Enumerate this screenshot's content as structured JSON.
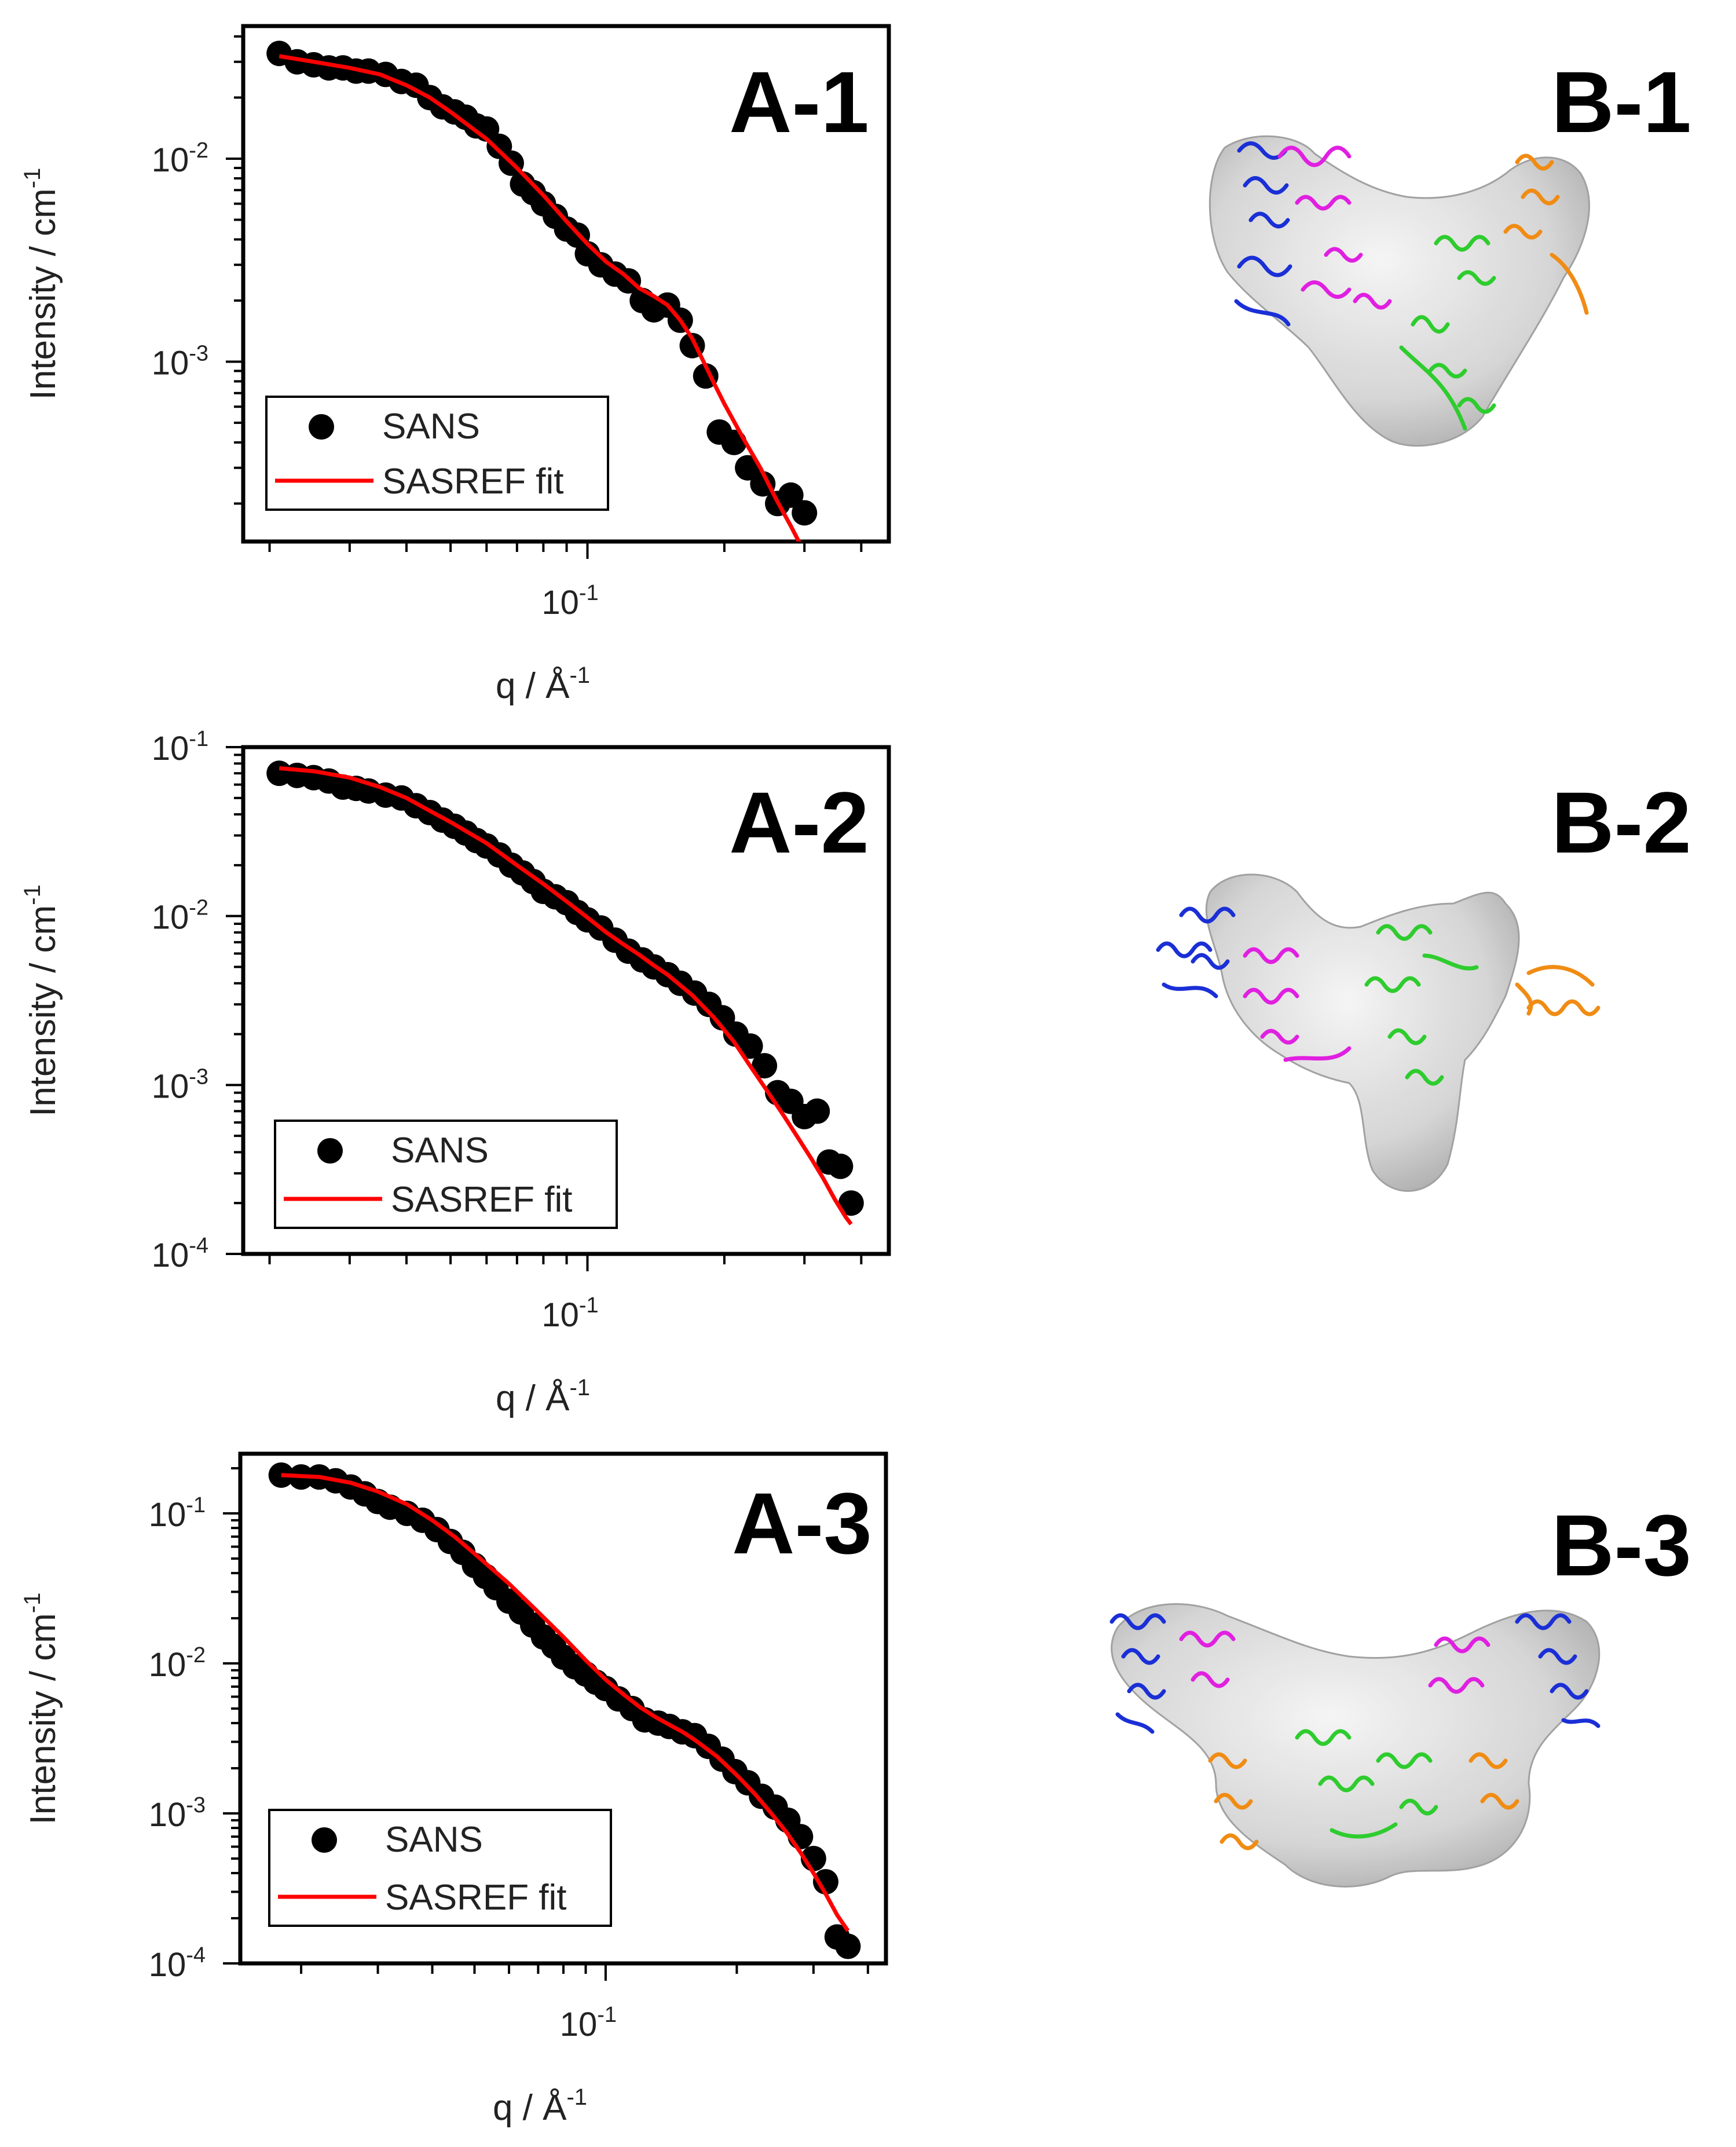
{
  "figure": {
    "background": "#ffffff",
    "colors": {
      "marker": "#000000",
      "fit": "#ff0000",
      "envelope": "#c8c8c8",
      "helix_blue": "#1a2fd6",
      "helix_magenta": "#e020e0",
      "helix_green": "#2ecc2e",
      "helix_orange": "#f08c14"
    }
  },
  "chart_data": [
    {
      "type": "scatter",
      "panel": "A-1",
      "title": "",
      "xlabel": "q / Å",
      "xlabel_sup": "-1",
      "ylabel": "Intensity / cm",
      "ylabel_sup": "-1",
      "xscale": "log",
      "yscale": "log",
      "xlim": [
        0.0175,
        0.46
      ],
      "ylim": [
        0.00013,
        0.045
      ],
      "x_tick_label_base": "10",
      "x_tick_labels": [
        {
          "value": 0.1,
          "exponent": "-1"
        }
      ],
      "y_tick_label_base": "10",
      "y_tick_labels": [
        {
          "value": 0.01,
          "exponent": "-2"
        },
        {
          "value": 0.001,
          "exponent": "-3"
        }
      ],
      "legend": {
        "position": "bottom-left",
        "entries": [
          "SANS",
          "SASREF fit"
        ]
      },
      "series": [
        {
          "name": "SANS",
          "style": "markers",
          "x": [
            0.021,
            0.023,
            0.025,
            0.027,
            0.029,
            0.031,
            0.033,
            0.036,
            0.039,
            0.042,
            0.045,
            0.048,
            0.051,
            0.054,
            0.057,
            0.06,
            0.064,
            0.068,
            0.072,
            0.076,
            0.08,
            0.085,
            0.09,
            0.095,
            0.1,
            0.107,
            0.115,
            0.123,
            0.132,
            0.14,
            0.15,
            0.16,
            0.17,
            0.182,
            0.195,
            0.21,
            0.225,
            0.243,
            0.262,
            0.28,
            0.3
          ],
          "y": [
            0.033,
            0.03,
            0.029,
            0.028,
            0.028,
            0.027,
            0.027,
            0.026,
            0.024,
            0.023,
            0.02,
            0.018,
            0.017,
            0.016,
            0.0145,
            0.014,
            0.0115,
            0.0095,
            0.0075,
            0.0068,
            0.006,
            0.0052,
            0.0045,
            0.0042,
            0.0034,
            0.003,
            0.0027,
            0.0025,
            0.002,
            0.0018,
            0.0019,
            0.0016,
            0.0012,
            0.00085,
            0.00045,
            0.0004,
            0.0003,
            0.00025,
            0.0002,
            0.00022,
            0.00018
          ]
        },
        {
          "name": "SASREF fit",
          "style": "line",
          "x": [
            0.021,
            0.025,
            0.03,
            0.035,
            0.04,
            0.045,
            0.05,
            0.06,
            0.07,
            0.08,
            0.09,
            0.1,
            0.11,
            0.12,
            0.13,
            0.14,
            0.15,
            0.16,
            0.17,
            0.18,
            0.19,
            0.2,
            0.22,
            0.24,
            0.26,
            0.28,
            0.3
          ],
          "y": [
            0.032,
            0.03,
            0.028,
            0.026,
            0.023,
            0.02,
            0.017,
            0.0125,
            0.009,
            0.0066,
            0.0049,
            0.0038,
            0.0031,
            0.0027,
            0.0023,
            0.0021,
            0.0019,
            0.0016,
            0.0013,
            0.001,
            0.00078,
            0.00062,
            0.00042,
            0.0003,
            0.00021,
            0.000155,
            0.000115
          ]
        }
      ]
    },
    {
      "type": "scatter",
      "panel": "A-2",
      "title": "",
      "xlabel": "q / Å",
      "xlabel_sup": "-1",
      "ylabel": "Intensity / cm",
      "ylabel_sup": "-1",
      "xscale": "log",
      "yscale": "log",
      "xlim": [
        0.0175,
        0.46
      ],
      "ylim": [
        0.0001,
        0.1
      ],
      "x_tick_label_base": "10",
      "x_tick_labels": [
        {
          "value": 0.1,
          "exponent": "-1"
        }
      ],
      "y_tick_label_base": "10",
      "y_tick_labels": [
        {
          "value": 0.1,
          "exponent": "-1"
        },
        {
          "value": 0.01,
          "exponent": "-2"
        },
        {
          "value": 0.001,
          "exponent": "-3"
        },
        {
          "value": 0.0001,
          "exponent": "-4"
        }
      ],
      "legend": {
        "position": "bottom-left",
        "entries": [
          "SANS",
          "SASREF fit"
        ]
      },
      "series": [
        {
          "name": "SANS",
          "style": "markers",
          "x": [
            0.021,
            0.023,
            0.025,
            0.027,
            0.029,
            0.031,
            0.033,
            0.036,
            0.039,
            0.042,
            0.045,
            0.048,
            0.051,
            0.054,
            0.057,
            0.06,
            0.064,
            0.068,
            0.072,
            0.076,
            0.08,
            0.085,
            0.09,
            0.095,
            0.1,
            0.107,
            0.115,
            0.123,
            0.132,
            0.14,
            0.15,
            0.16,
            0.172,
            0.185,
            0.198,
            0.212,
            0.228,
            0.245,
            0.262,
            0.28,
            0.3,
            0.32,
            0.34,
            0.36,
            0.38
          ],
          "y": [
            0.07,
            0.068,
            0.066,
            0.063,
            0.058,
            0.057,
            0.055,
            0.052,
            0.05,
            0.045,
            0.041,
            0.037,
            0.034,
            0.031,
            0.028,
            0.026,
            0.023,
            0.02,
            0.018,
            0.016,
            0.014,
            0.013,
            0.012,
            0.0105,
            0.0095,
            0.0085,
            0.0072,
            0.0062,
            0.0055,
            0.005,
            0.0045,
            0.004,
            0.0035,
            0.003,
            0.0025,
            0.002,
            0.0017,
            0.0013,
            0.0009,
            0.0008,
            0.00065,
            0.0007,
            0.00035,
            0.00033,
            0.0002
          ]
        },
        {
          "name": "SASREF fit",
          "style": "line",
          "x": [
            0.021,
            0.025,
            0.03,
            0.035,
            0.04,
            0.045,
            0.05,
            0.06,
            0.07,
            0.08,
            0.09,
            0.1,
            0.11,
            0.12,
            0.13,
            0.14,
            0.15,
            0.17,
            0.19,
            0.21,
            0.23,
            0.25,
            0.27,
            0.29,
            0.31,
            0.33,
            0.35,
            0.37,
            0.38
          ],
          "y": [
            0.075,
            0.072,
            0.066,
            0.058,
            0.05,
            0.042,
            0.036,
            0.027,
            0.02,
            0.0155,
            0.0122,
            0.0098,
            0.008,
            0.0068,
            0.0059,
            0.0051,
            0.0045,
            0.0034,
            0.0025,
            0.0018,
            0.00125,
            0.0009,
            0.00066,
            0.00049,
            0.00037,
            0.00028,
            0.00021,
            0.000165,
            0.00015
          ]
        }
      ]
    },
    {
      "type": "scatter",
      "panel": "A-3",
      "title": "",
      "xlabel": "q / Å",
      "xlabel_sup": "-1",
      "ylabel": "Intensity / cm",
      "ylabel_sup": "-1",
      "xscale": "log",
      "yscale": "log",
      "xlim": [
        0.0145,
        0.44
      ],
      "ylim": [
        0.0001,
        0.25
      ],
      "x_tick_label_base": "10",
      "x_tick_labels": [
        {
          "value": 0.1,
          "exponent": "-1"
        }
      ],
      "y_tick_label_base": "10",
      "y_tick_labels": [
        {
          "value": 0.1,
          "exponent": "-1"
        },
        {
          "value": 0.01,
          "exponent": "-2"
        },
        {
          "value": 0.001,
          "exponent": "-3"
        },
        {
          "value": 0.0001,
          "exponent": "-4"
        }
      ],
      "legend": {
        "position": "bottom-left",
        "entries": [
          "SANS",
          "SASREF fit"
        ]
      },
      "series": [
        {
          "name": "SANS",
          "style": "markers",
          "x": [
            0.018,
            0.02,
            0.022,
            0.024,
            0.026,
            0.028,
            0.03,
            0.032,
            0.035,
            0.038,
            0.041,
            0.044,
            0.047,
            0.05,
            0.053,
            0.056,
            0.06,
            0.064,
            0.068,
            0.072,
            0.076,
            0.08,
            0.085,
            0.09,
            0.095,
            0.1,
            0.107,
            0.115,
            0.123,
            0.132,
            0.14,
            0.15,
            0.16,
            0.172,
            0.185,
            0.198,
            0.212,
            0.228,
            0.245,
            0.262,
            0.28,
            0.3,
            0.32,
            0.34,
            0.36
          ],
          "y": [
            0.18,
            0.175,
            0.175,
            0.165,
            0.15,
            0.135,
            0.12,
            0.11,
            0.1,
            0.09,
            0.078,
            0.065,
            0.055,
            0.045,
            0.038,
            0.032,
            0.026,
            0.022,
            0.018,
            0.015,
            0.013,
            0.011,
            0.0095,
            0.0085,
            0.0075,
            0.0068,
            0.0058,
            0.005,
            0.0042,
            0.004,
            0.0038,
            0.0035,
            0.0033,
            0.0028,
            0.0023,
            0.0019,
            0.0016,
            0.0013,
            0.0011,
            0.0009,
            0.0007,
            0.0005,
            0.00035,
            0.00015,
            0.00013
          ]
        },
        {
          "name": "SASREF fit",
          "style": "line",
          "x": [
            0.018,
            0.022,
            0.026,
            0.03,
            0.035,
            0.04,
            0.045,
            0.05,
            0.06,
            0.07,
            0.08,
            0.09,
            0.1,
            0.11,
            0.12,
            0.13,
            0.14,
            0.15,
            0.16,
            0.18,
            0.2,
            0.22,
            0.24,
            0.26,
            0.28,
            0.3,
            0.32,
            0.34,
            0.36
          ],
          "y": [
            0.18,
            0.175,
            0.16,
            0.14,
            0.115,
            0.09,
            0.07,
            0.054,
            0.034,
            0.022,
            0.015,
            0.0105,
            0.0078,
            0.0062,
            0.0051,
            0.0044,
            0.0039,
            0.0035,
            0.0031,
            0.0024,
            0.0018,
            0.00135,
            0.001,
            0.00075,
            0.00055,
            0.0004,
            0.00029,
            0.00021,
            0.000165
          ]
        }
      ]
    }
  ],
  "panel_labels": {
    "a1": "A-1",
    "a2": "A-2",
    "a3": "A-3",
    "b1": "B-1",
    "b2": "B-2",
    "b3": "B-3"
  }
}
